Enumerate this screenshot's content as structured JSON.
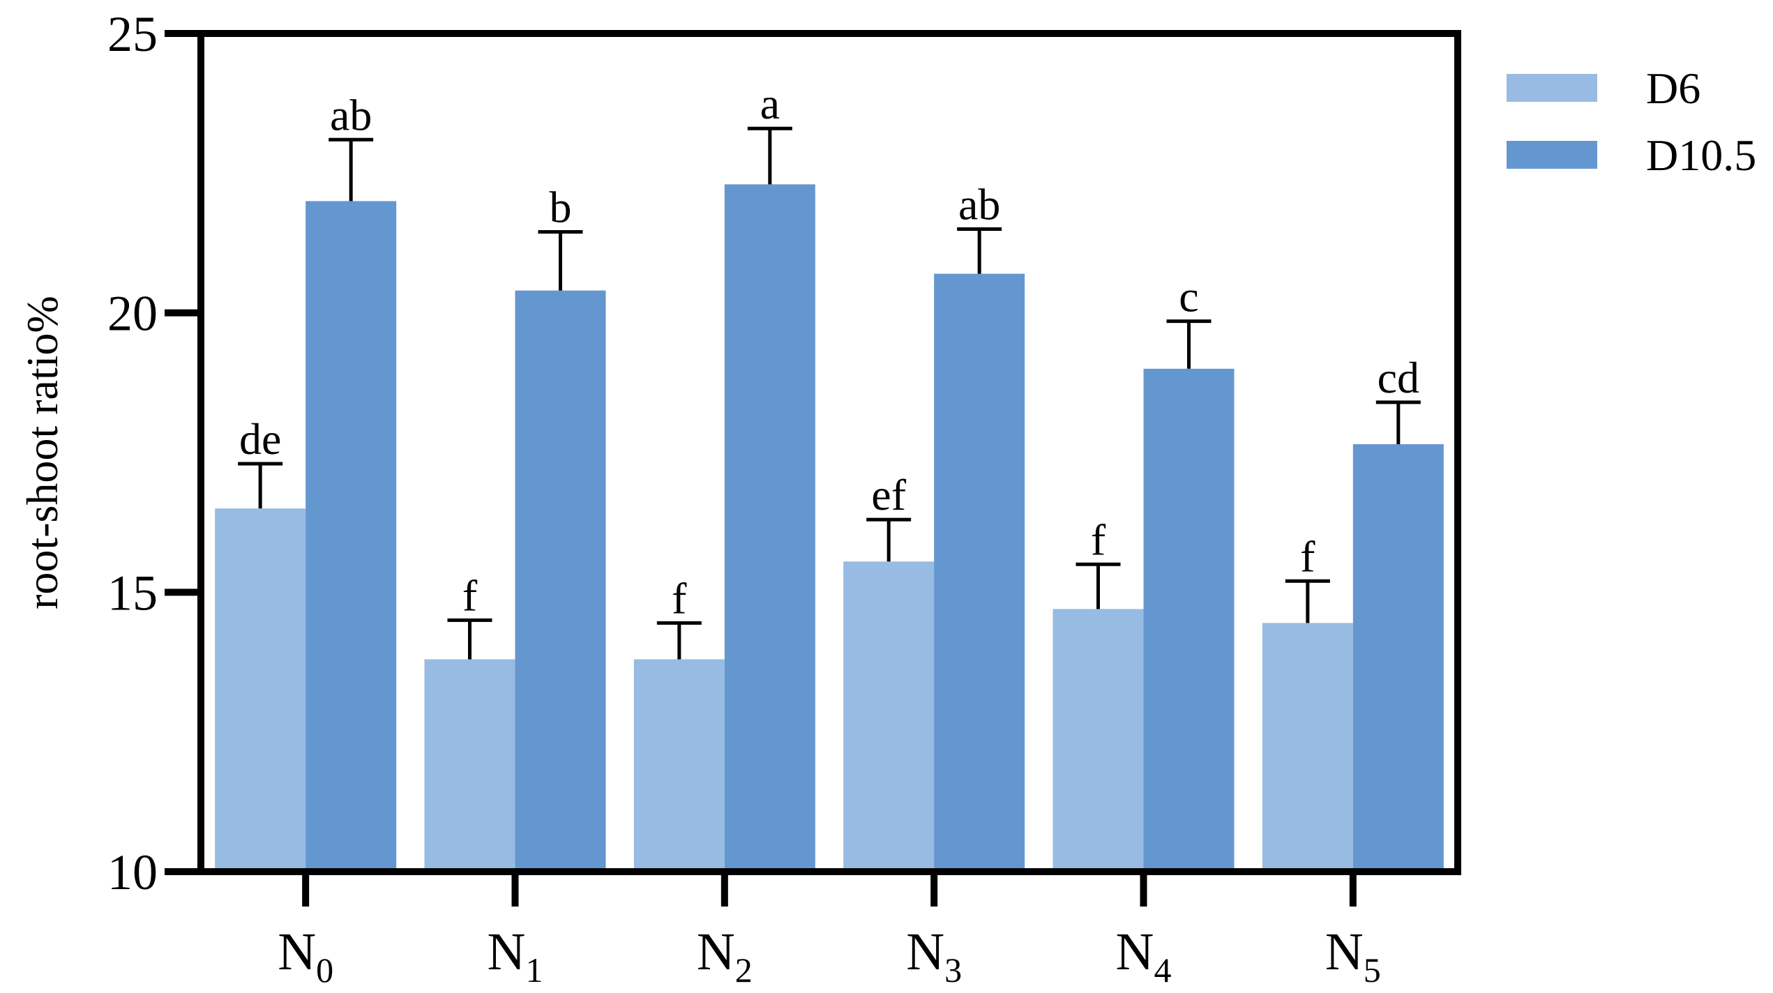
{
  "chart_data": {
    "type": "bar",
    "title": "",
    "xlabel": "",
    "ylabel": "root-shoot ratio%",
    "ylim": [
      10,
      25
    ],
    "yticks": [
      10,
      15,
      20,
      25
    ],
    "grid": false,
    "legend_position": "top-right",
    "categories": [
      {
        "base": "N",
        "sub": "0"
      },
      {
        "base": "N",
        "sub": "1"
      },
      {
        "base": "N",
        "sub": "2"
      },
      {
        "base": "N",
        "sub": "3"
      },
      {
        "base": "N",
        "sub": "4"
      },
      {
        "base": "N",
        "sub": "5"
      }
    ],
    "series": [
      {
        "name": "D6",
        "color": "#97bbe3",
        "values": [
          16.5,
          13.8,
          13.8,
          15.55,
          14.7,
          14.45
        ],
        "errors": [
          0.8,
          0.7,
          0.65,
          0.75,
          0.8,
          0.75
        ],
        "labels": [
          "de",
          "f",
          "f",
          "ef",
          "f",
          "f"
        ]
      },
      {
        "name": "D10.5",
        "color": "#6497cf",
        "values": [
          22.0,
          20.4,
          22.3,
          20.7,
          19.0,
          17.65
        ],
        "errors": [
          1.1,
          1.05,
          1.0,
          0.8,
          0.85,
          0.75
        ],
        "labels": [
          "ab",
          "b",
          "a",
          "ab",
          "c",
          "cd"
        ]
      }
    ]
  }
}
